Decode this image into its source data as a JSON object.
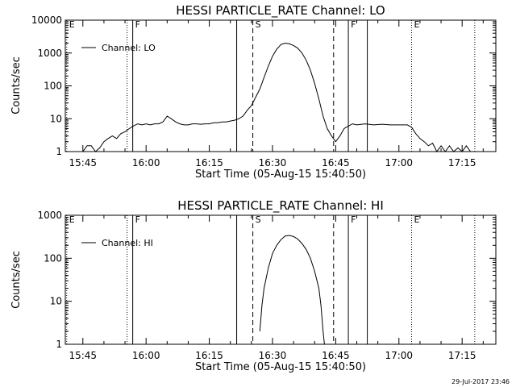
{
  "footer_timestamp": "29-Jul-2017 23:46",
  "chart_data": [
    {
      "type": "line",
      "title": "HESSI PARTICLE_RATE Channel: LO",
      "xlabel": "Start Time (05-Aug-15 15:40:50)",
      "ylabel": "Counts/sec",
      "y_scale": "log",
      "ylim": [
        1,
        10000
      ],
      "xlim": [
        "15:40:50",
        "17:23:00"
      ],
      "x_ticks": [
        "15:45",
        "16:00",
        "16:15",
        "16:30",
        "16:45",
        "17:00",
        "17:15"
      ],
      "y_ticks": [
        "1",
        "10",
        "100",
        "1000",
        "10000"
      ],
      "legend": {
        "position": "top-left",
        "entries": [
          "Channel: LO"
        ]
      },
      "markers": [
        {
          "label": "E",
          "time": "15:41:10",
          "style": "dotted"
        },
        {
          "label": "",
          "time": "15:55:30",
          "style": "dotted"
        },
        {
          "label": "F",
          "time": "15:56:50",
          "style": "solid"
        },
        {
          "label": "",
          "time": "16:21:30",
          "style": "solid"
        },
        {
          "label": "S",
          "time": "16:25:20",
          "style": "dashed"
        },
        {
          "label": "",
          "time": "16:44:30",
          "style": "dashed"
        },
        {
          "label": "F",
          "time": "16:48:00",
          "style": "solid"
        },
        {
          "label": "",
          "time": "16:52:30",
          "style": "solid"
        },
        {
          "label": "E",
          "time": "17:03:00",
          "style": "dotted"
        },
        {
          "label": "",
          "time": "17:18:00",
          "style": "dotted"
        }
      ],
      "series": [
        {
          "name": "Channel: LO",
          "points": [
            [
              "15:41:00",
              1
            ],
            [
              "15:42:00",
              1
            ],
            [
              "15:43:00",
              1
            ],
            [
              "15:44:00",
              1
            ],
            [
              "15:45:00",
              1
            ],
            [
              "15:46:00",
              1.5
            ],
            [
              "15:47:00",
              1.5
            ],
            [
              "15:48:00",
              1
            ],
            [
              "15:49:00",
              1.3
            ],
            [
              "15:50:00",
              2
            ],
            [
              "15:51:00",
              2.5
            ],
            [
              "15:52:00",
              3
            ],
            [
              "15:53:00",
              2.5
            ],
            [
              "15:54:00",
              3.5
            ],
            [
              "15:55:00",
              4
            ],
            [
              "15:56:00",
              5
            ],
            [
              "15:57:00",
              6
            ],
            [
              "15:58:00",
              7
            ],
            [
              "15:59:00",
              6.5
            ],
            [
              "16:00:00",
              7
            ],
            [
              "16:01:00",
              6.5
            ],
            [
              "16:02:00",
              7
            ],
            [
              "16:03:00",
              7
            ],
            [
              "16:04:00",
              8
            ],
            [
              "16:05:00",
              12
            ],
            [
              "16:06:00",
              10
            ],
            [
              "16:07:00",
              8
            ],
            [
              "16:08:00",
              7
            ],
            [
              "16:09:00",
              6.5
            ],
            [
              "16:10:00",
              6.5
            ],
            [
              "16:11:00",
              7
            ],
            [
              "16:12:00",
              7
            ],
            [
              "16:13:00",
              6.8
            ],
            [
              "16:14:00",
              7
            ],
            [
              "16:15:00",
              7
            ],
            [
              "16:16:00",
              7.5
            ],
            [
              "16:17:00",
              7.5
            ],
            [
              "16:18:00",
              8
            ],
            [
              "16:19:00",
              8
            ],
            [
              "16:20:00",
              8.5
            ],
            [
              "16:21:00",
              9
            ],
            [
              "16:22:00",
              10
            ],
            [
              "16:23:00",
              12
            ],
            [
              "16:24:00",
              18
            ],
            [
              "16:25:00",
              25
            ],
            [
              "16:26:00",
              45
            ],
            [
              "16:27:00",
              80
            ],
            [
              "16:28:00",
              180
            ],
            [
              "16:29:00",
              400
            ],
            [
              "16:30:00",
              800
            ],
            [
              "16:31:00",
              1300
            ],
            [
              "16:32:00",
              1800
            ],
            [
              "16:33:00",
              2000
            ],
            [
              "16:34:00",
              1900
            ],
            [
              "16:35:00",
              1700
            ],
            [
              "16:36:00",
              1400
            ],
            [
              "16:37:00",
              1000
            ],
            [
              "16:38:00",
              600
            ],
            [
              "16:39:00",
              300
            ],
            [
              "16:40:00",
              120
            ],
            [
              "16:41:00",
              40
            ],
            [
              "16:42:00",
              12
            ],
            [
              "16:43:00",
              5
            ],
            [
              "16:44:00",
              3
            ],
            [
              "16:45:00",
              2
            ],
            [
              "16:46:00",
              3
            ],
            [
              "16:47:00",
              5
            ],
            [
              "16:48:00",
              6
            ],
            [
              "16:49:00",
              7
            ],
            [
              "16:50:00",
              6.5
            ],
            [
              "16:52:00",
              7
            ],
            [
              "16:54:00",
              6.5
            ],
            [
              "16:56:00",
              6.8
            ],
            [
              "16:58:00",
              6.5
            ],
            [
              "17:00:00",
              6.5
            ],
            [
              "17:02:00",
              6.5
            ],
            [
              "17:03:00",
              5.5
            ],
            [
              "17:04:00",
              3.5
            ],
            [
              "17:05:00",
              2.5
            ],
            [
              "17:06:00",
              2
            ],
            [
              "17:07:00",
              1.5
            ],
            [
              "17:08:00",
              1.8
            ],
            [
              "17:09:00",
              1
            ],
            [
              "17:10:00",
              1.5
            ],
            [
              "17:11:00",
              1
            ],
            [
              "17:12:00",
              1.5
            ],
            [
              "17:13:00",
              1
            ],
            [
              "17:14:00",
              1.3
            ],
            [
              "17:15:00",
              1
            ],
            [
              "17:16:00",
              1.5
            ],
            [
              "17:17:00",
              1
            ],
            [
              "17:18:00",
              1
            ]
          ]
        }
      ]
    },
    {
      "type": "line",
      "title": "HESSI PARTICLE_RATE Channel: HI",
      "xlabel": "Start Time (05-Aug-15 15:40:50)",
      "ylabel": "Counts/sec",
      "y_scale": "log",
      "ylim": [
        1,
        1000
      ],
      "xlim": [
        "15:40:50",
        "17:23:00"
      ],
      "x_ticks": [
        "15:45",
        "16:00",
        "16:15",
        "16:30",
        "16:45",
        "17:00",
        "17:15"
      ],
      "y_ticks": [
        "1",
        "10",
        "100",
        "1000"
      ],
      "legend": {
        "position": "top-left",
        "entries": [
          "Channel: HI"
        ]
      },
      "markers": [
        {
          "label": "E",
          "time": "15:41:10",
          "style": "dotted"
        },
        {
          "label": "",
          "time": "15:55:30",
          "style": "dotted"
        },
        {
          "label": "F",
          "time": "15:56:50",
          "style": "solid"
        },
        {
          "label": "",
          "time": "16:21:30",
          "style": "solid"
        },
        {
          "label": "S",
          "time": "16:25:20",
          "style": "dashed"
        },
        {
          "label": "",
          "time": "16:44:30",
          "style": "dashed"
        },
        {
          "label": "F",
          "time": "16:48:00",
          "style": "solid"
        },
        {
          "label": "",
          "time": "16:52:30",
          "style": "solid"
        },
        {
          "label": "E",
          "time": "17:03:00",
          "style": "dotted"
        },
        {
          "label": "",
          "time": "17:18:00",
          "style": "dotted"
        }
      ],
      "series": [
        {
          "name": "Channel: HI",
          "points": [
            [
              "16:27:00",
              2
            ],
            [
              "16:27:30",
              8
            ],
            [
              "16:28:00",
              20
            ],
            [
              "16:29:00",
              60
            ],
            [
              "16:30:00",
              130
            ],
            [
              "16:31:00",
              200
            ],
            [
              "16:32:00",
              270
            ],
            [
              "16:33:00",
              330
            ],
            [
              "16:34:00",
              340
            ],
            [
              "16:35:00",
              320
            ],
            [
              "16:36:00",
              280
            ],
            [
              "16:37:00",
              220
            ],
            [
              "16:38:00",
              160
            ],
            [
              "16:39:00",
              100
            ],
            [
              "16:40:00",
              50
            ],
            [
              "16:41:00",
              20
            ],
            [
              "16:41:30",
              8
            ],
            [
              "16:42:00",
              2
            ],
            [
              "16:42:20",
              1
            ]
          ]
        }
      ]
    }
  ]
}
